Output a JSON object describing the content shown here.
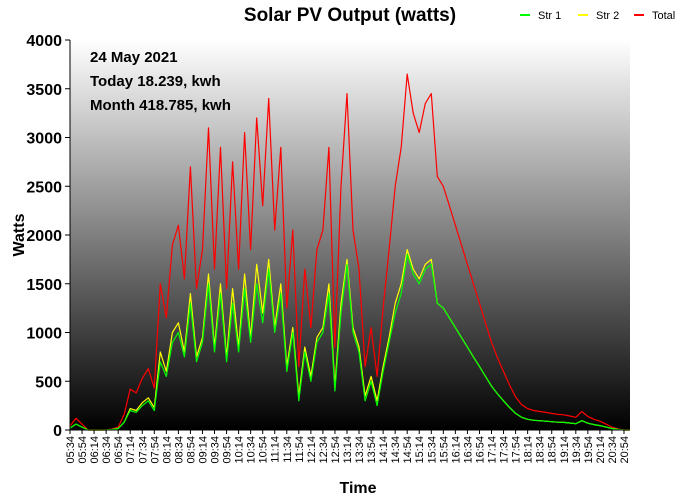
{
  "colors": {
    "str1": "#00ff00",
    "str2": "#ffff00",
    "total": "#ff0000"
  },
  "chart_data": {
    "type": "line",
    "title": "Solar PV Output (watts)",
    "xlabel": "Time",
    "ylabel": "Watts",
    "ylim": [
      0,
      4000
    ],
    "yticks": [
      0,
      500,
      1000,
      1500,
      2000,
      2500,
      3000,
      3500,
      4000
    ],
    "grid": false,
    "legend_position": "top-right",
    "background": "vertical gradient, white at top to black at bottom",
    "annotations": [
      "24 May 2021",
      "Today 18.239, kwh",
      "Month 418.785, kwh"
    ],
    "x_tick_labels": [
      "05:34",
      "05:54",
      "06:14",
      "06:34",
      "06:54",
      "07:14",
      "07:34",
      "07:54",
      "08:14",
      "08:34",
      "08:54",
      "09:14",
      "09:34",
      "09:54",
      "10:14",
      "10:34",
      "10:54",
      "11:14",
      "11:34",
      "11:54",
      "12:14",
      "12:34",
      "12:54",
      "13:14",
      "13:34",
      "13:54",
      "14:14",
      "14:34",
      "14:54",
      "15:14",
      "15:34",
      "15:54",
      "16:14",
      "16:34",
      "16:54",
      "17:14",
      "17:34",
      "17:54",
      "18:14",
      "18:34",
      "18:54",
      "19:14",
      "19:34",
      "19:54",
      "20:14",
      "20:34",
      "20:54"
    ],
    "x": [
      "05:34",
      "05:44",
      "05:54",
      "06:04",
      "06:14",
      "06:24",
      "06:34",
      "06:44",
      "06:54",
      "07:04",
      "07:14",
      "07:24",
      "07:34",
      "07:44",
      "07:54",
      "08:04",
      "08:14",
      "08:24",
      "08:34",
      "08:44",
      "08:54",
      "09:04",
      "09:14",
      "09:24",
      "09:34",
      "09:44",
      "09:54",
      "10:04",
      "10:14",
      "10:24",
      "10:34",
      "10:44",
      "10:54",
      "11:04",
      "11:14",
      "11:24",
      "11:34",
      "11:44",
      "11:54",
      "12:04",
      "12:14",
      "12:24",
      "12:34",
      "12:44",
      "12:54",
      "13:04",
      "13:14",
      "13:24",
      "13:34",
      "13:44",
      "13:54",
      "14:04",
      "14:14",
      "14:24",
      "14:34",
      "14:44",
      "14:54",
      "15:04",
      "15:14",
      "15:24",
      "15:34",
      "15:44",
      "15:54",
      "16:04",
      "16:14",
      "16:24",
      "16:34",
      "16:44",
      "16:54",
      "17:04",
      "17:14",
      "17:24",
      "17:34",
      "17:44",
      "17:54",
      "18:04",
      "18:14",
      "18:24",
      "18:34",
      "18:44",
      "18:54",
      "19:04",
      "19:14",
      "19:24",
      "19:34",
      "19:44",
      "19:54",
      "20:04",
      "20:14",
      "20:24",
      "20:34",
      "20:44",
      "20:54",
      "21:04"
    ],
    "series": [
      {
        "name": "Str 1",
        "color": "#00ff00",
        "values": [
          20,
          60,
          30,
          0,
          0,
          0,
          0,
          5,
          15,
          80,
          200,
          180,
          250,
          300,
          200,
          700,
          550,
          900,
          1000,
          750,
          1300,
          700,
          900,
          1500,
          800,
          1400,
          700,
          1300,
          800,
          1450,
          900,
          1500,
          1100,
          1650,
          1000,
          1400,
          600,
          1000,
          300,
          800,
          500,
          900,
          1000,
          1400,
          400,
          1200,
          1700,
          1000,
          800,
          300,
          500,
          250,
          600,
          900,
          1200,
          1400,
          1800,
          1600,
          1500,
          1650,
          1700,
          1300,
          1250,
          1150,
          1050,
          950,
          850,
          750,
          650,
          550,
          450,
          370,
          300,
          230,
          170,
          130,
          110,
          100,
          95,
          90,
          85,
          80,
          78,
          72,
          65,
          95,
          70,
          55,
          45,
          30,
          15,
          5,
          0,
          0
        ]
      },
      {
        "name": "Str 2",
        "color": "#ffff00",
        "values": [
          20,
          60,
          30,
          0,
          0,
          0,
          0,
          5,
          15,
          80,
          220,
          200,
          280,
          330,
          230,
          800,
          600,
          1000,
          1100,
          800,
          1400,
          750,
          950,
          1600,
          850,
          1500,
          750,
          1450,
          850,
          1600,
          950,
          1700,
          1200,
          1750,
          1050,
          1500,
          650,
          1050,
          350,
          850,
          550,
          950,
          1050,
          1500,
          450,
          1300,
          1750,
          1050,
          850,
          350,
          550,
          300,
          650,
          950,
          1300,
          1500,
          1850,
          1650,
          1550,
          1700,
          1750,
          1300,
          1250,
          1150,
          1050,
          950,
          850,
          750,
          650,
          550,
          450,
          370,
          300,
          230,
          170,
          130,
          110,
          100,
          95,
          90,
          85,
          80,
          78,
          72,
          65,
          95,
          70,
          55,
          45,
          30,
          15,
          5,
          0,
          0
        ]
      },
      {
        "name": "Total",
        "color": "#ff0000",
        "values": [
          40,
          120,
          60,
          0,
          0,
          0,
          0,
          10,
          30,
          160,
          420,
          380,
          530,
          630,
          430,
          1500,
          1150,
          1900,
          2100,
          1550,
          2700,
          1450,
          1850,
          3100,
          1650,
          2900,
          1450,
          2750,
          1650,
          3050,
          1850,
          3200,
          2300,
          3400,
          2050,
          2900,
          1250,
          2050,
          650,
          1650,
          1050,
          1850,
          2050,
          2900,
          850,
          2500,
          3450,
          2050,
          1650,
          650,
          1050,
          550,
          1250,
          1850,
          2500,
          2900,
          3650,
          3250,
          3050,
          3350,
          3450,
          2600,
          2500,
          2300,
          2100,
          1900,
          1700,
          1500,
          1300,
          1100,
          900,
          740,
          600,
          460,
          340,
          260,
          220,
          200,
          190,
          180,
          170,
          160,
          156,
          144,
          130,
          190,
          140,
          110,
          90,
          60,
          30,
          10,
          0,
          0
        ]
      }
    ]
  }
}
